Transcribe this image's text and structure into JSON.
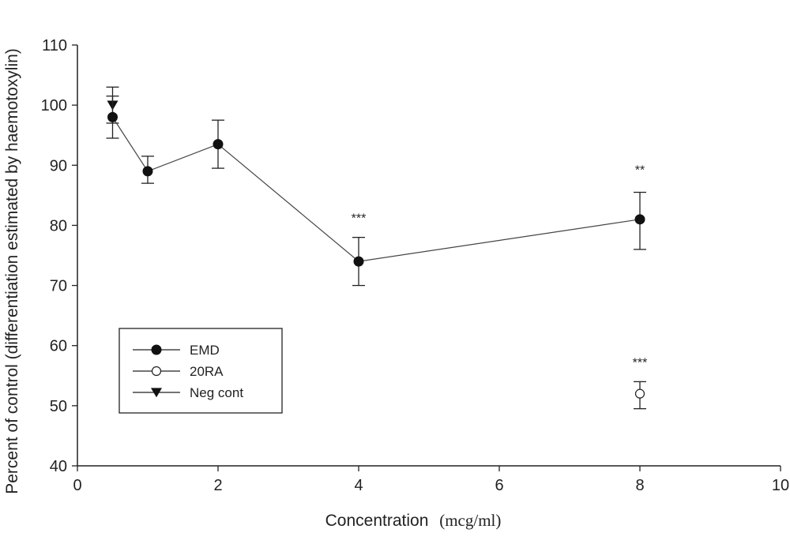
{
  "chart_data": {
    "type": "line",
    "xlabel": "Concentration",
    "xlabel_unit": "(mcg/ml)",
    "ylabel": "Percent of control (differentiation estimated by haemotoxylin)",
    "xlim": [
      0,
      10
    ],
    "ylim": [
      40,
      110
    ],
    "x_ticks": [
      0,
      2,
      4,
      6,
      8,
      10
    ],
    "y_ticks": [
      40,
      50,
      60,
      70,
      80,
      90,
      100,
      110
    ],
    "grid": false,
    "legend_position": "bottom-left",
    "series": [
      {
        "name": "EMD",
        "marker": "filled-circle",
        "connected": true,
        "points": [
          {
            "x": 0.5,
            "y": 98,
            "err_low": 94.5,
            "err_high": 101.5
          },
          {
            "x": 1,
            "y": 89,
            "err_low": 87,
            "err_high": 91.5
          },
          {
            "x": 2,
            "y": 93.5,
            "err_low": 89.5,
            "err_high": 97.5
          },
          {
            "x": 4,
            "y": 74,
            "err_low": 70,
            "err_high": 78
          },
          {
            "x": 8,
            "y": 81,
            "err_low": 76,
            "err_high": 85.5
          }
        ]
      },
      {
        "name": "20RA",
        "marker": "open-circle",
        "connected": false,
        "points": [
          {
            "x": 8,
            "y": 52,
            "err_low": 49.5,
            "err_high": 54
          }
        ]
      },
      {
        "name": "Neg cont",
        "marker": "filled-triangle-down",
        "connected": false,
        "points": [
          {
            "x": 0.5,
            "y": 100,
            "err_low": 97,
            "err_high": 103
          }
        ]
      }
    ],
    "annotations": [
      {
        "x": 4,
        "y": 80.5,
        "text": "***"
      },
      {
        "x": 8,
        "y": 88.5,
        "text": "**"
      },
      {
        "x": 8,
        "y": 56.5,
        "text": "***"
      }
    ]
  }
}
